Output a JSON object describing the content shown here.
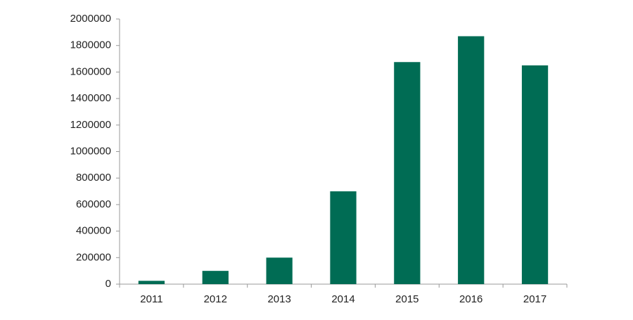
{
  "chart_data": {
    "type": "bar",
    "categories": [
      "2011",
      "2012",
      "2013",
      "2014",
      "2015",
      "2016",
      "2017"
    ],
    "values": [
      25000,
      100000,
      200000,
      700000,
      1675000,
      1870000,
      1650000
    ],
    "color": "#006c54",
    "ylim": [
      0,
      2000000
    ],
    "yticks": [
      0,
      200000,
      400000,
      600000,
      800000,
      1000000,
      1200000,
      1400000,
      1600000,
      1800000,
      2000000
    ],
    "grid": false
  }
}
